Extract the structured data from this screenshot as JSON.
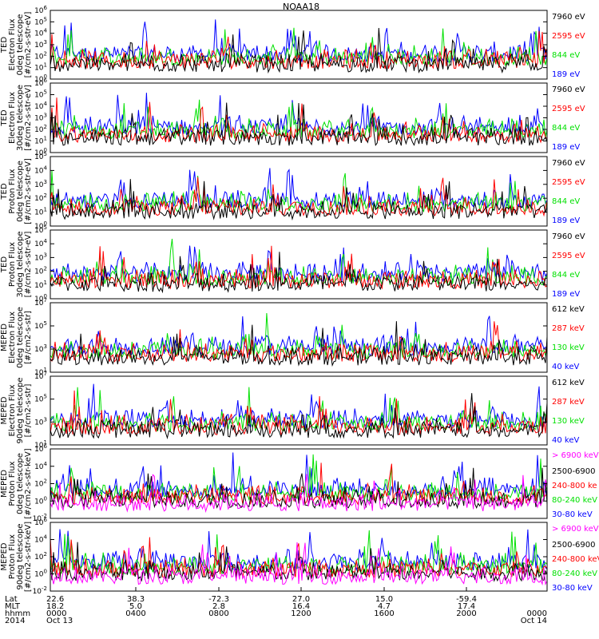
{
  "title": "NOAA18",
  "colors": {
    "black": "#000000",
    "red": "#ff0000",
    "green": "#00e000",
    "blue": "#0000ff",
    "magenta": "#ff00ff"
  },
  "chart_data": [
    {
      "type": "line",
      "ylabel": [
        "TED",
        "Electron Flux",
        "0deg telescope",
        "[#/cm2-s-str-eV]"
      ],
      "ylim_exp": [
        0,
        6
      ],
      "ytick_exps": [
        0,
        1,
        2,
        3,
        4,
        5,
        6
      ],
      "series": [
        {
          "name": "7960 eV",
          "color": "#000000"
        },
        {
          "name": "2595 eV",
          "color": "#ff0000"
        },
        {
          "name": "844 eV",
          "color": "#00e000"
        },
        {
          "name": "189 eV",
          "color": "#0000ff"
        }
      ]
    },
    {
      "type": "line",
      "ylabel": [
        "TED",
        "Electron Flux",
        "30deg telescope",
        "[#/cm2-s-str-eV]"
      ],
      "ylim_exp": [
        0,
        6
      ],
      "ytick_exps": [
        0,
        1,
        2,
        3,
        4,
        5,
        6
      ],
      "series": [
        {
          "name": "7960 eV",
          "color": "#000000"
        },
        {
          "name": "2595 eV",
          "color": "#ff0000"
        },
        {
          "name": "844 eV",
          "color": "#00e000"
        },
        {
          "name": "189 eV",
          "color": "#0000ff"
        }
      ]
    },
    {
      "type": "line",
      "ylabel": [
        "TED",
        "Proton Flux",
        "0deg telescope",
        "[#/cm2-s-str-eV]"
      ],
      "ylim_exp": [
        0,
        5
      ],
      "ytick_exps": [
        0,
        1,
        2,
        3,
        4,
        5
      ],
      "series": [
        {
          "name": "7960 eV",
          "color": "#000000"
        },
        {
          "name": "2595 eV",
          "color": "#ff0000"
        },
        {
          "name": "844 eV",
          "color": "#00e000"
        },
        {
          "name": "189 eV",
          "color": "#0000ff"
        }
      ]
    },
    {
      "type": "line",
      "ylabel": [
        "TED",
        "Proton Flux",
        "30deg telescope",
        "[#/cm2-s-str-eV]"
      ],
      "ylim_exp": [
        0,
        5
      ],
      "ytick_exps": [
        0,
        1,
        2,
        3,
        4,
        5
      ],
      "series": [
        {
          "name": "7960 eV",
          "color": "#000000"
        },
        {
          "name": "2595 eV",
          "color": "#ff0000"
        },
        {
          "name": "844 eV",
          "color": "#00e000"
        },
        {
          "name": "189 eV",
          "color": "#0000ff"
        }
      ]
    },
    {
      "type": "line",
      "ylabel": [
        "MEPED",
        "Electron Flux",
        "0deg telescope",
        "[#/cm2-s-str]"
      ],
      "ylim_exp": [
        1,
        7
      ],
      "ytick_exps": [
        1,
        3,
        5,
        7
      ],
      "series": [
        {
          "name": "612 keV",
          "color": "#000000"
        },
        {
          "name": "287 keV",
          "color": "#ff0000"
        },
        {
          "name": "130 keV",
          "color": "#00e000"
        },
        {
          "name": "40 keV",
          "color": "#0000ff"
        }
      ]
    },
    {
      "type": "line",
      "ylabel": [
        "MEPED",
        "Electron Flux",
        "90deg telescope",
        "[#/cm2-s-str]"
      ],
      "ylim_exp": [
        1,
        7
      ],
      "ytick_exps": [
        1,
        3,
        5,
        7
      ],
      "series": [
        {
          "name": "612 keV",
          "color": "#000000"
        },
        {
          "name": "287 keV",
          "color": "#ff0000"
        },
        {
          "name": "130 keV",
          "color": "#00e000"
        },
        {
          "name": "40 keV",
          "color": "#0000ff"
        }
      ]
    },
    {
      "type": "line",
      "ylabel": [
        "MEPED",
        "Proton Flux",
        "0deg telescope",
        "[#/cm2-s-str-keV]"
      ],
      "ylim_exp": [
        -2,
        6
      ],
      "ytick_exps": [
        -2,
        0,
        2,
        4,
        6
      ],
      "series": [
        {
          "name": "> 6900 keV",
          "color": "#ff00ff"
        },
        {
          "name": "2500-6900",
          "color": "#000000"
        },
        {
          "name": "240-800 ke",
          "color": "#ff0000"
        },
        {
          "name": "80-240 keV",
          "color": "#00e000"
        },
        {
          "name": "30-80 keV",
          "color": "#0000ff"
        }
      ]
    },
    {
      "type": "line",
      "ylabel": [
        "MEPED",
        "Proton Flux",
        "90deg telescope",
        "[#/cm2-s-str-keV]"
      ],
      "ylim_exp": [
        -2,
        6
      ],
      "ytick_exps": [
        -2,
        0,
        2,
        4,
        6
      ],
      "series": [
        {
          "name": "> 6900 keV",
          "color": "#ff00ff"
        },
        {
          "name": "2500-6900",
          "color": "#000000"
        },
        {
          "name": "240-800 keV",
          "color": "#ff0000"
        },
        {
          "name": "80-240 keV",
          "color": "#00e000"
        },
        {
          "name": "30-80 keV",
          "color": "#0000ff"
        }
      ]
    }
  ],
  "x_axis": {
    "row_labels": [
      "Lat",
      "MLT",
      "hhmm",
      "2014"
    ],
    "columns": [
      {
        "lat": "22.6",
        "mlt": "18.2",
        "hhmm": "0000",
        "date": "Oct 13"
      },
      {
        "lat": "38.3",
        "mlt": "5.0",
        "hhmm": "0400",
        "date": ""
      },
      {
        "lat": "-72.3",
        "mlt": "2.8",
        "hhmm": "0800",
        "date": ""
      },
      {
        "lat": "27.0",
        "mlt": "16.4",
        "hhmm": "1200",
        "date": ""
      },
      {
        "lat": "15.0",
        "mlt": "4.7",
        "hhmm": "1600",
        "date": ""
      },
      {
        "lat": "-59.4",
        "mlt": "17.4",
        "hhmm": "2000",
        "date": ""
      },
      {
        "lat": "",
        "mlt": "",
        "hhmm": "0000",
        "date": "Oct 14"
      }
    ]
  }
}
